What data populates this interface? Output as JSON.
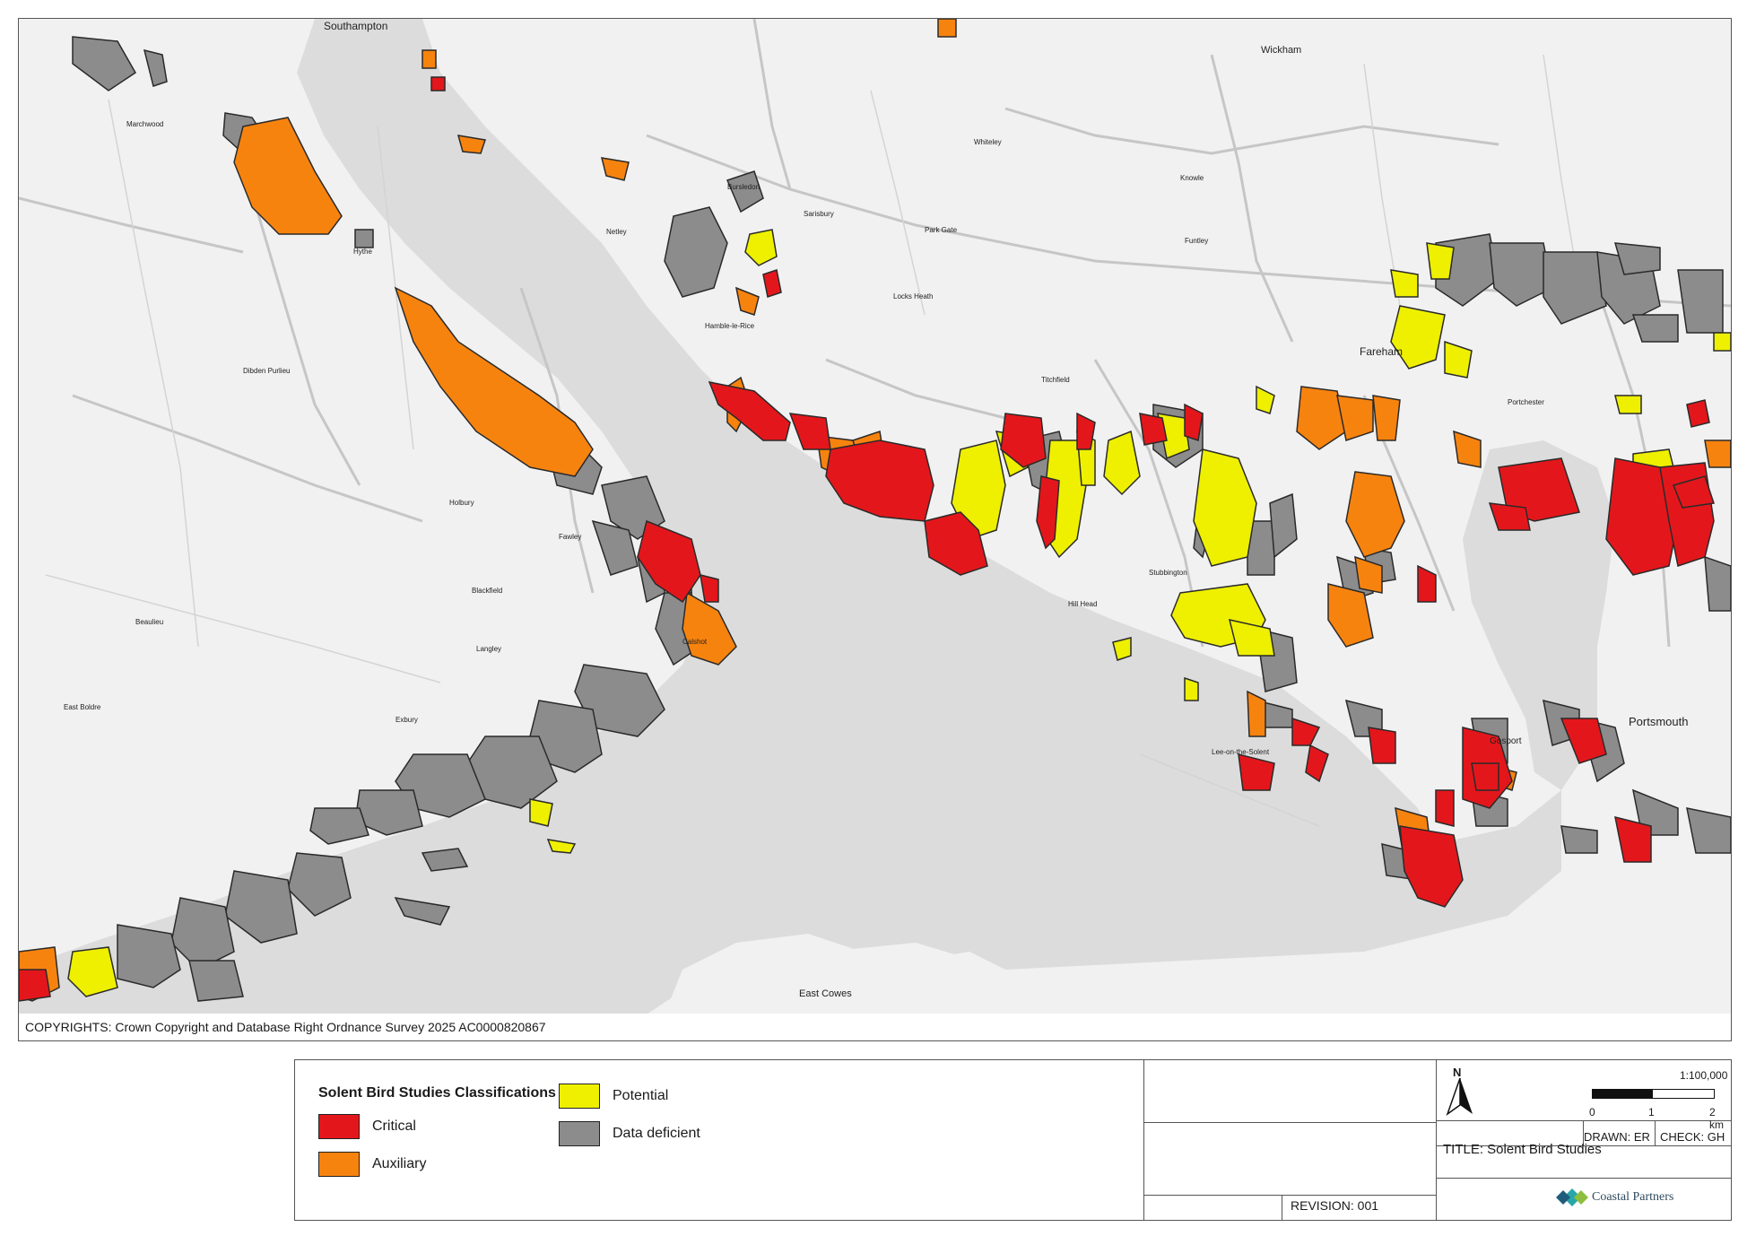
{
  "map": {
    "places": {
      "southampton": "Southampton",
      "wickham": "Wickham",
      "fareham": "Fareham",
      "portsmouth": "Portsmouth",
      "gosport": "Gosport",
      "east_cowes": "East Cowes",
      "hythe": "Hythe",
      "marchwood": "Marchwood",
      "dibden_purlieu": "Dibden Purlieu",
      "holbury": "Holbury",
      "blackfield": "Blackfield",
      "fawley": "Fawley",
      "beaulieu": "Beaulieu",
      "exbury": "Exbury",
      "hamble_le_rice": "Hamble-le-Rice",
      "locks_heath": "Locks Heath",
      "titchfield": "Titchfield",
      "stubbington": "Stubbington",
      "hill_head": "Hill Head",
      "bursledon": "Bursledon",
      "netley": "Netley",
      "sarisbury": "Sarisbury",
      "park_gate": "Park Gate",
      "whiteley": "Whiteley",
      "funtley": "Funtley",
      "knowle": "Knowle",
      "portchester": "Portchester",
      "lee_on_the_solent": "Lee-on-the-Solent",
      "calshot": "Calshot",
      "langley": "Langley",
      "east_boldre": "East Boldre"
    }
  },
  "copyright": "COPYRIGHTS: Crown Copyright and Database Right Ordnance Survey 2025 AC0000820867",
  "legend": {
    "title": "Solent Bird Studies Classifications",
    "items": {
      "critical": {
        "label": "Critical",
        "color": "#e3171b"
      },
      "auxiliary": {
        "label": "Auxiliary",
        "color": "#f7830f"
      },
      "potential": {
        "label": "Potential",
        "color": "#eef000"
      },
      "data_deficient": {
        "label": "Data deficient",
        "color": "#8c8c8c"
      }
    }
  },
  "title_block": {
    "title": "TITLE: Solent Bird Studies",
    "revision": "REVISION: 001",
    "drawn": "DRAWN: ER",
    "check": "CHECK: GH",
    "scale": "1:100,000",
    "scale_ticks": [
      "0",
      "1",
      "2 km"
    ],
    "north": "N",
    "logo": "Coastal Partners"
  },
  "colors": {
    "land": "#f1f1f1",
    "water": "#dcdcdc",
    "road": "#c6c6c6",
    "outline": "#2a2a2a"
  }
}
